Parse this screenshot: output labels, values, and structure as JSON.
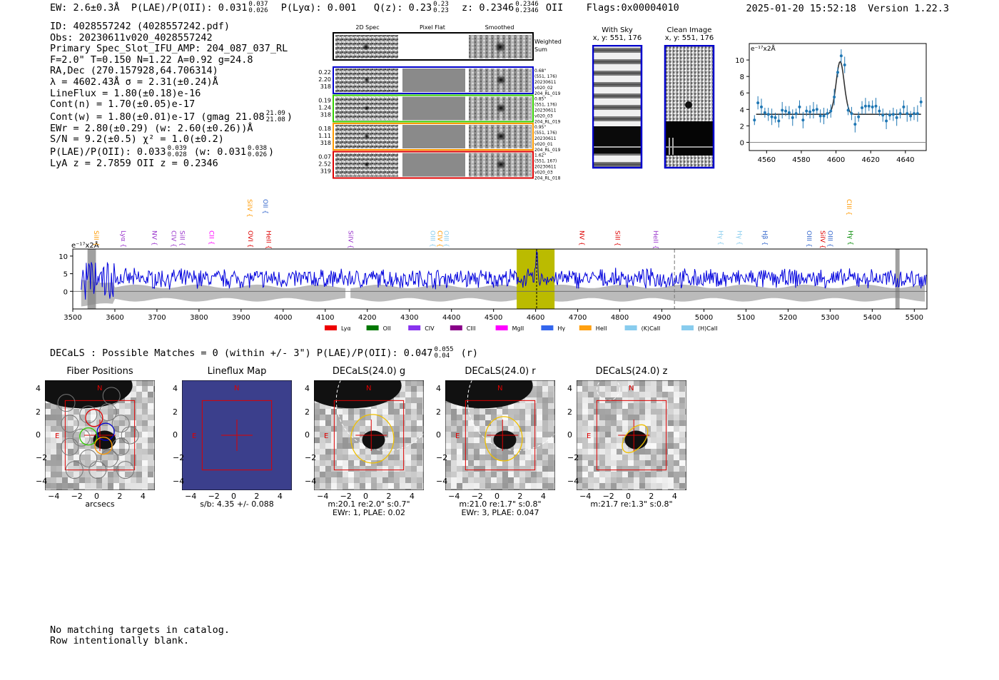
{
  "header": {
    "ew": "EW: 2.6±0.3Å",
    "plae_label": "P(LAE)/P(OII):",
    "plae_val": "0.031",
    "plae_hi": "0.037",
    "plae_lo": "0.026",
    "plya": "P(Lyα): 0.001",
    "q_label": "Q(z): 0.23",
    "q_hi": "0.23",
    "q_lo": "0.23",
    "z_label": "z: 0.2346",
    "z_hi": "0.2346",
    "z_lo": "0.2346",
    "z_line": "OII",
    "flags": "Flags:0x00004010",
    "datetime": "2025-01-20 15:52:18",
    "version": "Version 1.22.3"
  },
  "meta": {
    "id": "ID: 4028557242 (4028557242.pdf)",
    "obs": "Obs: 20230611v020_4028557242",
    "primary": "Primary Spec_Slot_IFU_AMP: 204_087_037_RL",
    "fit": "F=2.0\"  T=0.150  N=1.22  A=0.92  g=24.8",
    "radec": "RA,Dec (270.157928,64.706314)",
    "lambda": "λ = 4602.43Å   σ = 2.31(±0.24)Å",
    "lineflux": "LineFlux = 1.80(±0.18)e-16",
    "contn": "Cont(n) = 1.70(±0.05)e-17",
    "contw_pre": "Cont(w) = 1.80(±0.01)e-17 (gmag 21.08",
    "contw_hi": "21.09",
    "contw_lo": "21.08",
    "contw_post": ")",
    "ewr": "EWr = 2.80(±0.29) (w: 2.60(±0.26))Å",
    "sn": "S/N = 9.2(±0.5)  χ² = 1.0(±0.2)",
    "plae_pre": "P(LAE)/P(OII): 0.033",
    "plae_hi": "0.039",
    "plae_lo": "0.028",
    "plae_mid": "(w: 0.031",
    "plae_whi": "0.038",
    "plae_wlo": "0.026",
    "plae_post": ")",
    "lyaz": "LyA z = 2.7859   OII z = 0.2346"
  },
  "stamps": {
    "col_2d": "2D Spec",
    "col_flat": "Pixel Flat",
    "col_smooth": "Smoothed",
    "weighted": "Weighted",
    "sum": "Sum",
    "rows": [
      {
        "a": "0.22",
        "b": "2.20",
        "c": "318",
        "color": "#0000cc",
        "info": [
          "0.68\"",
          "(551, 176)",
          "20230611",
          "v020_02",
          "204_RL_019"
        ]
      },
      {
        "a": "0.19",
        "b": "1.24",
        "c": "318",
        "color": "#33cc00",
        "info": [
          "0.85\"",
          "(551, 176)",
          "20230611",
          "v020_03",
          "204_RL_019"
        ]
      },
      {
        "a": "0.18",
        "b": "1.11",
        "c": "318",
        "color": "#ff9900",
        "info": [
          "0.95\"",
          "(551, 176)",
          "20230611",
          "v020_01",
          "204_RL_019"
        ]
      },
      {
        "a": "0.07",
        "b": "2.52",
        "c": "319",
        "color": "#dd0000",
        "info": [
          "1.62\"",
          "(551, 167)",
          "20230611",
          "v020_03",
          "204_RL_018"
        ]
      }
    ]
  },
  "sky": {
    "with_sky_title": "With Sky",
    "with_sky_xy": "x, y: 551, 176",
    "clean_title": "Clean Image",
    "clean_xy": "x, y: 551, 176"
  },
  "colors": {
    "spectrum": "#0000dd",
    "error_band": "#bbbbbb",
    "highlight": "#bbbb00",
    "fit": "#333333",
    "data": "#1f77b4",
    "frame_blue": "#0000cc",
    "lineflux_bg": "#3b3f8c",
    "red": "#dd0000"
  },
  "chart_data": [
    {
      "type": "scatter",
      "title": "",
      "ylabel_unit": "e⁻¹⁷x2Å",
      "xlim": [
        4550,
        4652
      ],
      "ylim": [
        -1,
        12
      ],
      "xticks": [
        4560,
        4580,
        4600,
        4620,
        4640
      ],
      "yticks": [
        0,
        2,
        4,
        6,
        8,
        10
      ],
      "points": {
        "x": [
          4553,
          4555,
          4557,
          4559,
          4561,
          4563,
          4565,
          4567,
          4569,
          4571,
          4573,
          4575,
          4577,
          4579,
          4581,
          4583,
          4585,
          4587,
          4589,
          4591,
          4593,
          4595,
          4597,
          4599,
          4601,
          4603,
          4605,
          4607,
          4609,
          4611,
          4613,
          4615,
          4617,
          4619,
          4621,
          4623,
          4625,
          4627,
          4629,
          4631,
          4633,
          4635,
          4637,
          4639,
          4641,
          4643,
          4645,
          4647,
          4649
        ],
        "y": [
          2.7,
          4.8,
          4.3,
          3.6,
          3.4,
          3.1,
          3.0,
          2.6,
          3.9,
          3.8,
          3.6,
          3.0,
          3.5,
          4.3,
          2.7,
          3.8,
          3.7,
          3.9,
          4.0,
          3.2,
          3.2,
          3.5,
          3.8,
          5.5,
          8.5,
          10.5,
          9.4,
          3.9,
          3.5,
          2.2,
          3.1,
          4.2,
          4.4,
          4.4,
          4.3,
          4.4,
          3.8,
          3.3,
          2.6,
          3.3,
          3.4,
          3.0,
          3.5,
          4.3,
          3.5,
          3.2,
          3.5,
          3.5,
          4.9
        ]
      },
      "fit": {
        "continuum": 3.4,
        "peak": 9.8,
        "center": 4602.4,
        "sigma": 2.31
      }
    },
    {
      "type": "line",
      "title": "",
      "ylabel_unit": "e⁻¹⁷x2Å",
      "xlim": [
        3500,
        5530
      ],
      "ylim": [
        -5,
        12
      ],
      "xticks": [
        3500,
        3600,
        3700,
        3800,
        3900,
        4000,
        4100,
        4200,
        4300,
        4400,
        4500,
        4600,
        4700,
        4800,
        4900,
        5000,
        5100,
        5200,
        5300,
        5400,
        5500
      ],
      "yticks": [
        0,
        5,
        10
      ],
      "highlight_range": [
        4555,
        4645
      ],
      "line_marker": 4602.4,
      "dashed_marker": 4930,
      "masked_bands": [
        [
          3535,
          3555
        ],
        [
          5455,
          5465
        ]
      ],
      "line_labels": [
        {
          "name": "SiII",
          "wave": 3546,
          "color": "#ff9900",
          "row": 1
        },
        {
          "name": "Lyα",
          "wave": 3610,
          "color": "#9933cc",
          "row": 1
        },
        {
          "name": "NV",
          "wave": 3684,
          "color": "#9933cc",
          "row": 1
        },
        {
          "name": "CIV",
          "wave": 3730,
          "color": "#9933cc",
          "row": 1
        },
        {
          "name": "SiII",
          "wave": 3750,
          "color": "#9933cc",
          "row": 1
        },
        {
          "name": "CII",
          "wave": 3820,
          "color": "#ff00ff",
          "row": 1
        },
        {
          "name": "SiIV",
          "wave": 3910,
          "color": "#ff9900",
          "row": 0
        },
        {
          "name": "OII",
          "wave": 3948,
          "color": "#3366cc",
          "row": 0
        },
        {
          "name": "OVI",
          "wave": 3912,
          "color": "#dd0000",
          "row": 1
        },
        {
          "name": "HeII",
          "wave": 3955,
          "color": "#dd0000",
          "row": 1
        },
        {
          "name": "SiIV",
          "wave": 4150,
          "color": "#9933cc",
          "row": 1
        },
        {
          "name": "OIII",
          "wave": 4345,
          "color": "#88ccee",
          "row": 1
        },
        {
          "name": "CIV",
          "wave": 4362,
          "color": "#ff9900",
          "row": 1
        },
        {
          "name": "OIII",
          "wave": 4378,
          "color": "#88ccee",
          "row": 1
        },
        {
          "name": "NV",
          "wave": 4700,
          "color": "#dd0000",
          "row": 1
        },
        {
          "name": "SiII",
          "wave": 4785,
          "color": "#dd0000",
          "row": 1
        },
        {
          "name": "HeII",
          "wave": 4875,
          "color": "#9933cc",
          "row": 1
        },
        {
          "name": "Hγ",
          "wave": 5030,
          "color": "#88ccee",
          "row": 1
        },
        {
          "name": "Hγ",
          "wave": 5075,
          "color": "#88ccee",
          "row": 1
        },
        {
          "name": "Hβ",
          "wave": 5135,
          "color": "#3366cc",
          "row": 1
        },
        {
          "name": "OIII",
          "wave": 5240,
          "color": "#3366cc",
          "row": 1
        },
        {
          "name": "SiIV",
          "wave": 5272,
          "color": "#dd0000",
          "row": 1
        },
        {
          "name": "OIII",
          "wave": 5290,
          "color": "#3366cc",
          "row": 1
        },
        {
          "name": "CIII",
          "wave": 5335,
          "color": "#ff9900",
          "row": 0
        },
        {
          "name": "Hγ",
          "wave": 5338,
          "color": "#008800",
          "row": 1
        }
      ],
      "legend": [
        {
          "label": "Lyα",
          "color": "#ee0000"
        },
        {
          "label": "OII",
          "color": "#007700"
        },
        {
          "label": "CIV",
          "color": "#8833ee"
        },
        {
          "label": "CIII",
          "color": "#880088"
        },
        {
          "label": "MgII",
          "color": "#ff00ff"
        },
        {
          "label": "Hγ",
          "color": "#3366ee"
        },
        {
          "label": "HeII",
          "color": "#ffa010"
        },
        {
          "label": "(K)CaII",
          "color": "#88ccee"
        },
        {
          "label": "(H)CaII",
          "color": "#88ccee"
        }
      ]
    }
  ],
  "decals": {
    "line_pre": "DECaLS : Possible Matches = 0 (within +/- 3\")  P(LAE)/P(OII): 0.047",
    "hi": "0.055",
    "lo": "0.04",
    "post": "(r)",
    "axis_xticks": [
      "−4",
      "−2",
      "0",
      "2",
      "4"
    ],
    "axis_yticks": [
      "4",
      "2",
      "0",
      "−2",
      "−4"
    ],
    "n_label": "N",
    "e_label": "E",
    "panels": [
      {
        "title": "Fiber Positions",
        "cap1": "arcsecs",
        "cap2": ""
      },
      {
        "title": "Lineflux Map",
        "cap1": "s/b: 4.35 +/- 0.088",
        "cap2": ""
      },
      {
        "title": "DECaLS(24.0) g",
        "cap1": "m:20.1  re:2.0\"  s:0.7\"",
        "cap2": "EWr: 1, PLAE: 0.02"
      },
      {
        "title": "DECaLS(24.0) r",
        "cap1": "m:21.0  re:1.7\"  s:0.8\"",
        "cap2": "EWr: 3, PLAE: 0.047"
      },
      {
        "title": "DECaLS(24.0) z",
        "cap1": "m:21.7  re:1.3\"  s:0.8\"",
        "cap2": ""
      }
    ]
  },
  "notes": {
    "line1": "No matching targets in catalog.",
    "line2": "Row intentionally blank."
  }
}
